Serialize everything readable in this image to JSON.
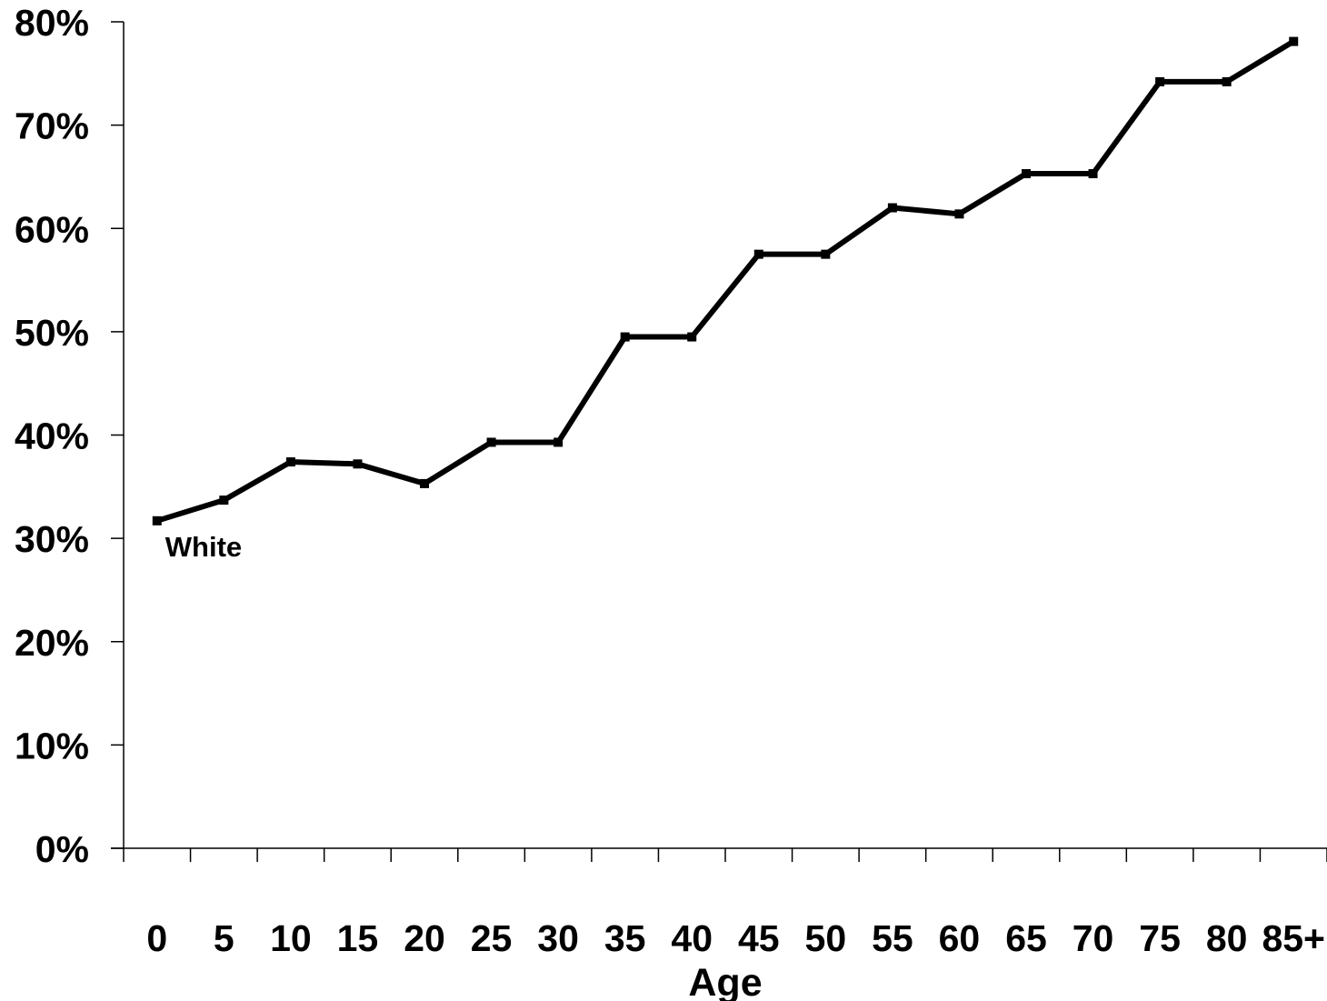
{
  "chart_data": {
    "type": "line",
    "xlabel": "Age",
    "ylabel": "",
    "categories": [
      "0",
      "5",
      "10",
      "15",
      "20",
      "25",
      "30",
      "35",
      "40",
      "45",
      "50",
      "55",
      "60",
      "65",
      "70",
      "75",
      "80",
      "85+"
    ],
    "yticks": [
      "0%",
      "10%",
      "20%",
      "30%",
      "40%",
      "50%",
      "60%",
      "70%",
      "80%"
    ],
    "ylim": [
      0,
      80
    ],
    "grid": false,
    "series": [
      {
        "name": "White",
        "values": [
          31.7,
          33.7,
          37.4,
          37.2,
          35.3,
          39.3,
          39.3,
          49.5,
          49.5,
          57.5,
          57.5,
          62.0,
          61.4,
          65.3,
          65.3,
          74.2,
          74.2,
          78.1
        ],
        "color": "#000000"
      }
    ]
  }
}
